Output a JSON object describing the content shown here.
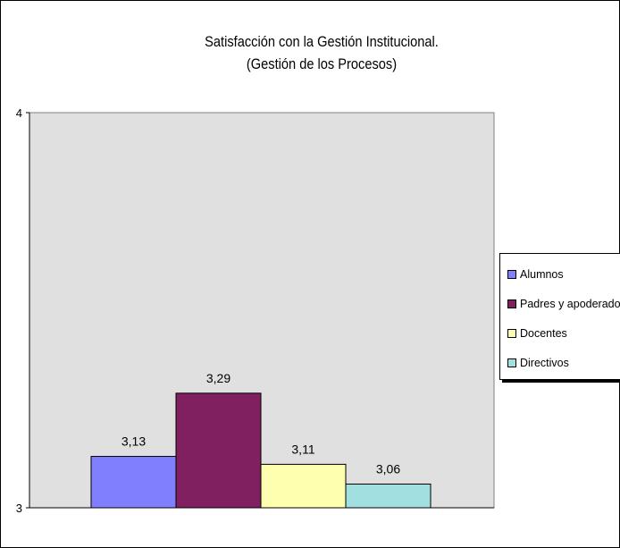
{
  "chart_data": {
    "type": "bar",
    "title": [
      "Satisfacción con la Gestión Institucional.",
      "(Gestión de los Procesos)"
    ],
    "categories": [
      "Alumnos",
      "Padres y apoderados",
      "Docentes",
      "Directivos"
    ],
    "values": [
      3.13,
      3.29,
      3.11,
      3.06
    ],
    "value_labels": [
      "3,13",
      "3,29",
      "3,11",
      "3,06"
    ],
    "ylim": [
      3,
      4
    ],
    "y_ticks": [
      {
        "value": 3,
        "label": "3"
      },
      {
        "value": 4,
        "label": "4"
      }
    ],
    "grid": false,
    "plot_background": "#e0e0e0",
    "colors": [
      "#8080ff",
      "#802060",
      "#ffffb0",
      "#a0e0e0"
    ],
    "legend": {
      "placement": "right",
      "entries": [
        "Alumnos",
        "Padres y apoderados",
        "Docentes",
        "Directivos"
      ]
    }
  }
}
